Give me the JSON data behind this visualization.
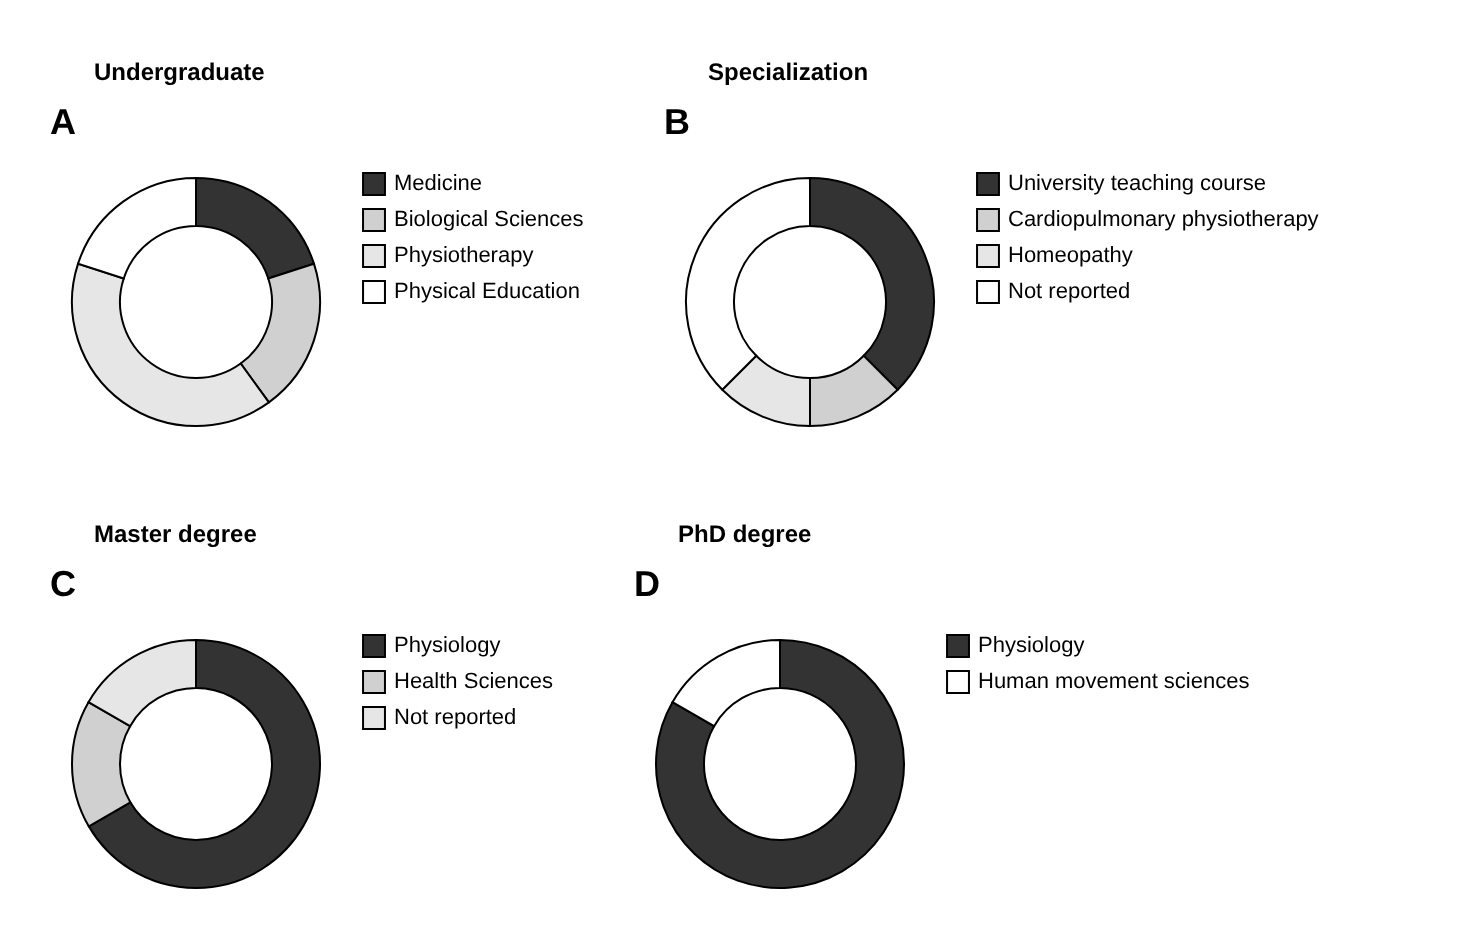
{
  "chart_data": [
    {
      "type": "donut",
      "title": "Undergraduate",
      "annotations": [
        "A"
      ],
      "categories": [
        "Medicine",
        "Biological Sciences",
        "Physiotherapy",
        "Physical Education"
      ],
      "values": [
        20,
        20,
        40,
        20
      ],
      "colors": [
        "#333333",
        "#d0d0d0",
        "#e6e6e6",
        "#ffffff"
      ],
      "legend": "right"
    },
    {
      "type": "donut",
      "title": "Specialization",
      "annotations": [
        "B"
      ],
      "categories": [
        "University teaching course",
        "Cardiopulmonary physiotherapy",
        "Homeopathy",
        "Not reported"
      ],
      "values": [
        37.5,
        12.5,
        12.5,
        37.5
      ],
      "colors": [
        "#333333",
        "#d0d0d0",
        "#e6e6e6",
        "#ffffff"
      ],
      "legend": "right"
    },
    {
      "type": "donut",
      "title": "Master degree",
      "annotations": [
        "C"
      ],
      "categories": [
        "Physiology",
        "Health Sciences",
        "Not reported"
      ],
      "values": [
        66.6,
        16.7,
        16.7
      ],
      "colors": [
        "#333333",
        "#d0d0d0",
        "#e6e6e6"
      ],
      "legend": "right"
    },
    {
      "type": "donut",
      "title": "PhD degree",
      "annotations": [
        "D"
      ],
      "categories": [
        "Physiology",
        "Human movement sciences"
      ],
      "values": [
        83.3,
        16.7
      ],
      "colors": [
        "#333333",
        "#ffffff"
      ],
      "legend": "right"
    }
  ]
}
